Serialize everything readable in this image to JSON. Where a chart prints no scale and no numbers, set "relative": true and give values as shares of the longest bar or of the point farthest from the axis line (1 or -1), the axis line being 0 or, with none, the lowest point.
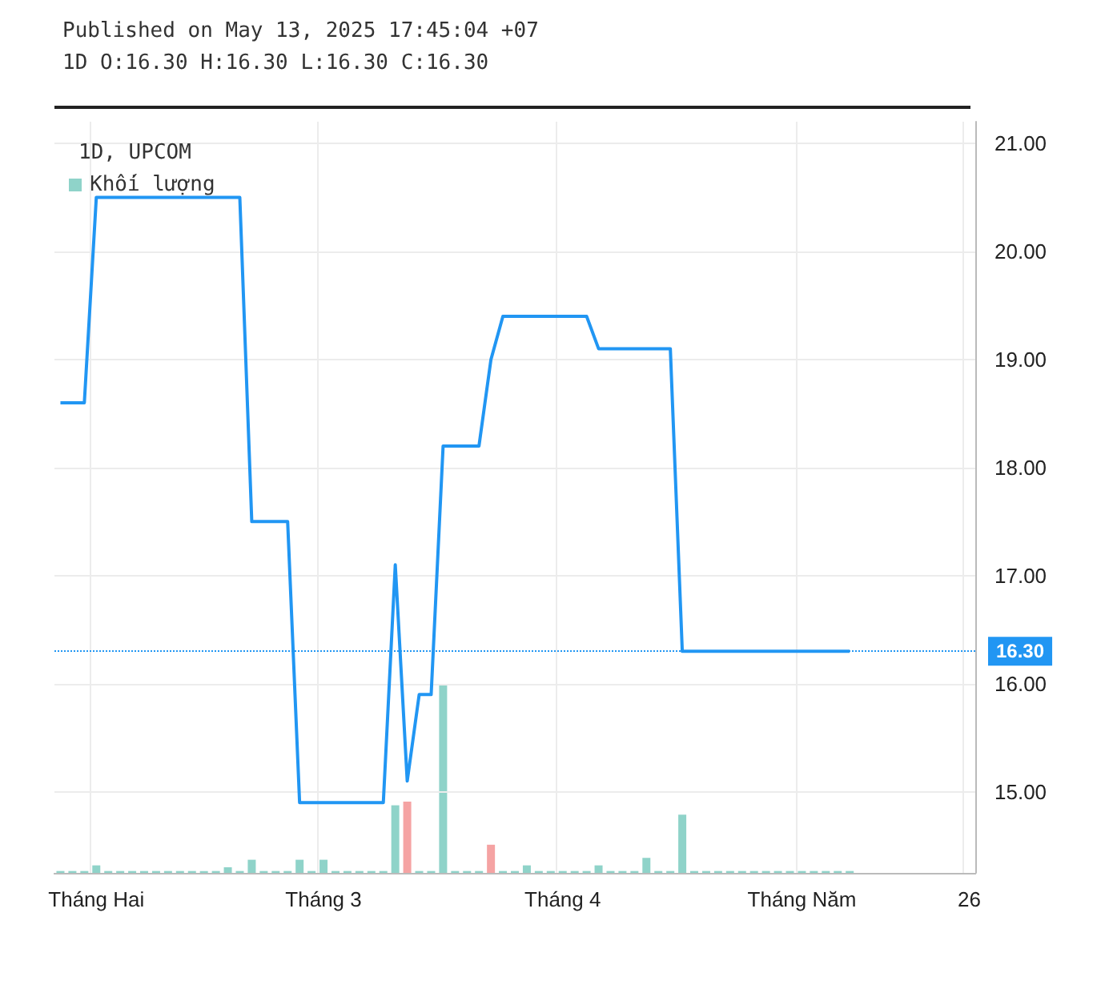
{
  "chart_data": [
    {
      "type": "line",
      "title": "1D, UPCOM",
      "subtitle": "1D O:16.30 H:16.30 L:16.30 C:16.30",
      "annotations": [
        "Published on May 13, 2025 17:45:04 +07"
      ],
      "categories": [
        null,
        null,
        null,
        "Tháng Hai",
        null,
        null,
        null,
        null,
        null,
        null,
        null,
        null,
        null,
        null,
        null,
        null,
        null,
        null,
        null,
        null,
        null,
        null,
        "Tháng 3",
        null,
        null,
        null,
        null,
        null,
        null,
        null,
        null,
        null,
        null,
        null,
        null,
        null,
        null,
        null,
        null,
        null,
        null,
        null,
        "Tháng 4",
        null,
        null,
        null,
        null,
        null,
        null,
        null,
        null,
        null,
        null,
        null,
        null,
        null,
        null,
        null,
        null,
        null,
        null,
        null,
        "Tháng Năm",
        null,
        null,
        null,
        null,
        null,
        null,
        null,
        null,
        null,
        null,
        null,
        null,
        null,
        "26"
      ],
      "series": [
        {
          "color": "#2196f3",
          "values": [
            18.6,
            18.6,
            18.6,
            20.5,
            20.5,
            20.5,
            20.5,
            20.5,
            20.5,
            20.5,
            20.5,
            20.5,
            20.5,
            20.5,
            20.5,
            20.5,
            17.5,
            17.5,
            17.5,
            17.5,
            14.9,
            14.9,
            14.9,
            14.9,
            14.9,
            14.9,
            14.9,
            14.9,
            17.1,
            15.1,
            15.9,
            15.9,
            18.2,
            18.2,
            18.2,
            18.2,
            19.0,
            19.4,
            19.4,
            19.4,
            19.4,
            19.4,
            19.4,
            19.4,
            19.4,
            19.1,
            19.1,
            19.1,
            19.1,
            19.1,
            19.1,
            19.1,
            16.3,
            16.3,
            16.3,
            16.3,
            16.3,
            16.3,
            16.3,
            16.3,
            16.3,
            16.3,
            16.3,
            16.3,
            16.3,
            16.3,
            16.3,
            null,
            null,
            null,
            null,
            null,
            null,
            null,
            null,
            null,
            null
          ]
        }
      ],
      "ylim": [
        14.25,
        21.2
      ],
      "yticks": [
        {
          "value": 15,
          "label": "15.00"
        },
        {
          "value": 16,
          "label": "16.00"
        },
        {
          "value": 17,
          "label": "17.00"
        },
        {
          "value": 18,
          "label": "18.00"
        },
        {
          "value": 19,
          "label": "19.00"
        },
        {
          "value": 20,
          "label": "20.00"
        },
        {
          "value": 21,
          "label": "21.00"
        }
      ],
      "ref_lines": [
        {
          "axis": "y",
          "value": 16.3,
          "label": "16.30",
          "color": "#2196f3",
          "line_style": "dotted"
        }
      ],
      "grid": true
    },
    {
      "type": "bar",
      "relative": true,
      "categories": [
        null,
        null,
        null,
        null,
        null,
        null,
        null,
        null,
        null,
        null,
        null,
        null,
        null,
        null,
        null,
        null,
        null,
        null,
        null,
        null,
        null,
        null,
        null,
        null,
        null,
        null,
        null,
        null,
        null,
        null,
        null,
        null,
        null,
        null,
        null,
        null,
        null,
        null,
        null,
        null,
        null,
        null,
        null,
        null,
        null,
        null,
        null,
        null,
        null,
        null,
        null,
        null,
        null,
        null,
        null,
        null,
        null,
        null,
        null,
        null,
        null,
        null,
        null,
        null,
        null,
        null,
        null,
        null,
        null,
        null,
        null,
        null,
        null,
        null,
        null,
        null,
        null
      ],
      "series": [
        {
          "name": "Khối lượng",
          "color": "#8fd3c9",
          "values": [
            0.01,
            0.01,
            0.01,
            0.04,
            0.01,
            0.01,
            0.01,
            0.01,
            0.01,
            0.01,
            0.01,
            0.01,
            0.01,
            0.01,
            0.03,
            0.01,
            0.07,
            0.01,
            0.01,
            0.01,
            0.07,
            0.01,
            0.07,
            0.01,
            0.01,
            0.01,
            0.01,
            0.01,
            0.36,
            0.38,
            0.01,
            0.01,
            1,
            0.01,
            0.01,
            0.01,
            0.15,
            0.01,
            0.01,
            0.04,
            0.01,
            0.01,
            0.01,
            0.01,
            0.01,
            0.04,
            0.01,
            0.01,
            0.01,
            0.08,
            0.01,
            0.01,
            0.31,
            0.01,
            0.01,
            0.01,
            0.01,
            0.01,
            0.01,
            0.01,
            0.01,
            0.01,
            0.01,
            0.01,
            0.01,
            0.01,
            0.01,
            null,
            null,
            null,
            null,
            null,
            null,
            null,
            null,
            null,
            null
          ],
          "colors": [
            "#8fd3c9",
            "#8fd3c9",
            "#8fd3c9",
            "#8fd3c9",
            "#8fd3c9",
            "#8fd3c9",
            "#8fd3c9",
            "#8fd3c9",
            "#8fd3c9",
            "#8fd3c9",
            "#8fd3c9",
            "#8fd3c9",
            "#8fd3c9",
            "#8fd3c9",
            "#8fd3c9",
            "#8fd3c9",
            "#8fd3c9",
            "#8fd3c9",
            "#8fd3c9",
            "#8fd3c9",
            "#8fd3c9",
            "#8fd3c9",
            "#8fd3c9",
            "#8fd3c9",
            "#8fd3c9",
            "#8fd3c9",
            "#8fd3c9",
            "#8fd3c9",
            "#8fd3c9",
            "#f5a3a3",
            "#8fd3c9",
            "#8fd3c9",
            "#8fd3c9",
            "#8fd3c9",
            "#8fd3c9",
            "#8fd3c9",
            "#f5a3a3",
            "#8fd3c9",
            "#8fd3c9",
            "#8fd3c9",
            "#8fd3c9",
            "#8fd3c9",
            "#8fd3c9",
            "#8fd3c9",
            "#8fd3c9",
            "#8fd3c9",
            "#8fd3c9",
            "#8fd3c9",
            "#8fd3c9",
            "#8fd3c9",
            "#8fd3c9",
            "#8fd3c9",
            "#8fd3c9",
            "#8fd3c9",
            "#8fd3c9",
            "#8fd3c9",
            "#8fd3c9",
            "#8fd3c9",
            "#8fd3c9",
            "#8fd3c9",
            "#8fd3c9",
            "#8fd3c9",
            "#8fd3c9",
            "#8fd3c9",
            "#8fd3c9",
            "#8fd3c9",
            "#8fd3c9",
            "#8fd3c9",
            "#8fd3c9",
            "#8fd3c9",
            "#8fd3c9",
            "#8fd3c9",
            "#8fd3c9",
            "#8fd3c9",
            "#8fd3c9",
            "#8fd3c9",
            "#8fd3c9"
          ]
        }
      ],
      "legend": "top left"
    }
  ]
}
